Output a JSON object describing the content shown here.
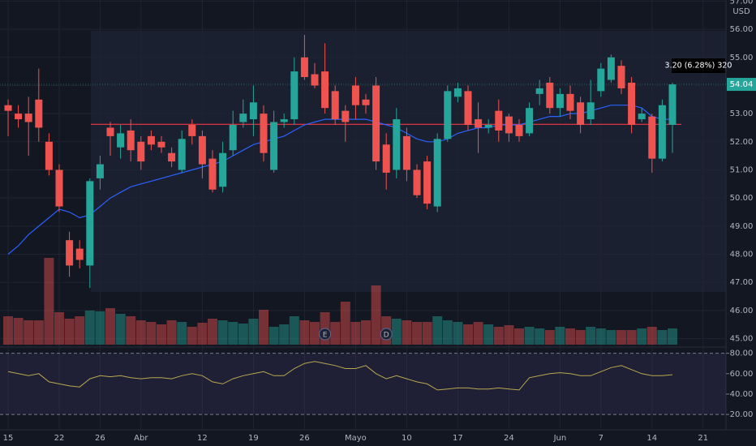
{
  "chart_data": [
    {
      "type": "candlestick",
      "currency": "USD",
      "categories": [
        "15",
        null,
        null,
        null,
        null,
        "22",
        null,
        null,
        null,
        "26",
        null,
        null,
        null,
        "Abr",
        null,
        null,
        null,
        null,
        null,
        "12",
        null,
        null,
        null,
        null,
        "19",
        null,
        null,
        null,
        null,
        "26",
        null,
        null,
        null,
        null,
        "Mayo",
        null,
        null,
        null,
        null,
        "10",
        null,
        null,
        null,
        null,
        "17",
        null,
        null,
        null,
        null,
        "24",
        null,
        null,
        null,
        null,
        "Jun",
        null,
        null,
        null,
        "7",
        null,
        null,
        null,
        null,
        "14",
        null,
        null,
        null,
        null,
        "21"
      ],
      "open": [
        53.3,
        53.0,
        53.0,
        53.5,
        52.0,
        51.0,
        48.5,
        48.2,
        47.6,
        50.7,
        52.5,
        51.8,
        52.4,
        52.0,
        52.2,
        52.0,
        51.6,
        51.0,
        52.6,
        52.2,
        51.4,
        50.4,
        51.7,
        52.7,
        52.8,
        53.0,
        51.0,
        52.7,
        52.8,
        55.0,
        54.4,
        54.5,
        53.8,
        53.1,
        54.0,
        53.5,
        54.0,
        51.9,
        51.0,
        52.2,
        51.0,
        51.3,
        49.7,
        52.1,
        53.6,
        53.8,
        52.8,
        52.5,
        53.1,
        52.9,
        52.6,
        52.3,
        53.7,
        54.1,
        53.2,
        53.7,
        53.4,
        52.8,
        53.8,
        54.2,
        54.7,
        54.1,
        52.8,
        52.9,
        51.4,
        52.6,
        null,
        null,
        null
      ],
      "high": [
        53.5,
        53.3,
        53.6,
        54.6,
        52.3,
        51.2,
        48.8,
        48.5,
        50.7,
        51.5,
        52.7,
        52.6,
        52.8,
        52.2,
        52.4,
        52.2,
        51.8,
        52.4,
        52.8,
        52.4,
        51.7,
        52.0,
        53.1,
        53.5,
        54.0,
        53.3,
        53.1,
        53.0,
        55.0,
        55.8,
        54.8,
        55.5,
        54.0,
        53.3,
        54.3,
        53.7,
        54.3,
        52.3,
        53.2,
        52.5,
        51.2,
        51.5,
        52.3,
        54.0,
        54.1,
        54.0,
        53.4,
        52.8,
        53.5,
        53.0,
        52.8,
        53.4,
        54.2,
        54.3,
        53.9,
        54.0,
        53.6,
        54.2,
        54.8,
        55.1,
        54.9,
        54.3,
        53.2,
        53.0,
        53.5,
        54.1,
        null,
        null,
        null
      ],
      "low": [
        52.2,
        52.5,
        51.5,
        52.0,
        50.8,
        49.5,
        47.2,
        47.5,
        46.8,
        50.3,
        51.5,
        51.4,
        51.3,
        51.0,
        51.7,
        51.6,
        51.1,
        50.9,
        51.9,
        50.7,
        50.2,
        50.2,
        51.5,
        52.5,
        52.2,
        51.3,
        50.9,
        52.5,
        52.6,
        54.2,
        53.9,
        53.0,
        52.6,
        52.0,
        52.8,
        53.0,
        51.0,
        50.3,
        50.7,
        50.6,
        50.0,
        49.6,
        49.5,
        52.0,
        53.4,
        52.4,
        51.6,
        52.3,
        52.0,
        52.0,
        52.0,
        52.2,
        53.3,
        53.0,
        52.9,
        52.8,
        52.3,
        52.6,
        53.6,
        54.1,
        53.7,
        52.3,
        52.7,
        50.9,
        51.3,
        51.6,
        null,
        null,
        null
      ],
      "close": [
        53.1,
        52.8,
        52.7,
        52.5,
        51.0,
        49.7,
        47.6,
        47.8,
        50.6,
        51.2,
        52.2,
        52.3,
        51.7,
        51.3,
        51.9,
        51.8,
        51.3,
        52.1,
        52.2,
        51.2,
        50.3,
        51.6,
        52.6,
        53.0,
        53.4,
        51.6,
        52.7,
        52.8,
        54.5,
        54.3,
        54.0,
        53.2,
        52.8,
        52.7,
        53.3,
        53.3,
        51.3,
        50.9,
        52.8,
        51.0,
        50.1,
        49.8,
        52.1,
        53.8,
        53.9,
        52.6,
        52.5,
        52.6,
        52.4,
        52.3,
        52.2,
        53.2,
        53.9,
        53.2,
        53.7,
        53.1,
        52.6,
        53.4,
        54.6,
        55.0,
        53.9,
        52.6,
        53.0,
        51.4,
        53.3,
        54.04,
        null,
        null,
        null
      ],
      "ma": {
        "color": "#2962ff",
        "values": [
          48.0,
          48.3,
          48.7,
          49.0,
          49.3,
          49.6,
          49.5,
          49.3,
          49.4,
          49.7,
          50.0,
          50.2,
          50.4,
          50.5,
          50.6,
          50.7,
          50.8,
          50.9,
          51.0,
          51.1,
          51.2,
          51.3,
          51.5,
          51.7,
          51.9,
          52.0,
          52.1,
          52.2,
          52.4,
          52.6,
          52.7,
          52.8,
          52.8,
          52.8,
          52.8,
          52.8,
          52.7,
          52.6,
          52.5,
          52.3,
          52.1,
          52.0,
          52.0,
          52.1,
          52.3,
          52.4,
          52.5,
          52.5,
          52.6,
          52.6,
          52.6,
          52.7,
          52.8,
          52.9,
          52.9,
          53.0,
          53.0,
          53.1,
          53.2,
          53.3,
          53.3,
          53.3,
          53.2,
          52.9,
          52.8,
          52.8,
          null,
          null,
          null
        ]
      },
      "volume": {
        "values": [
          35,
          33,
          30,
          30,
          107,
          40,
          32,
          35,
          42,
          41,
          45,
          38,
          35,
          30,
          28,
          25,
          30,
          28,
          22,
          27,
          32,
          30,
          28,
          26,
          32,
          43,
          22,
          25,
          35,
          30,
          28,
          40,
          28,
          53,
          28,
          30,
          73,
          35,
          32,
          30,
          28,
          28,
          35,
          30,
          28,
          25,
          28,
          25,
          22,
          24,
          20,
          22,
          20,
          18,
          22,
          20,
          18,
          22,
          20,
          18,
          18,
          18,
          20,
          22,
          18,
          20,
          null,
          null,
          null
        ]
      },
      "up_color": "#26a69a",
      "down_color": "#ef5350",
      "last_price": 54.04,
      "change_label": "3.20 (6.28%) 320",
      "poc": 52.62,
      "events": [
        {
          "label": "E",
          "x": 31
        },
        {
          "label": "D",
          "x": 37
        }
      ],
      "ylim": [
        44.7,
        57.04
      ],
      "yticks": [
        {
          "value": 45,
          "label": "45.00"
        },
        {
          "value": 46,
          "label": "46.00"
        },
        {
          "value": 47,
          "label": "47.00"
        },
        {
          "value": 48,
          "label": "48.00"
        },
        {
          "value": 49,
          "label": "49.00"
        },
        {
          "value": 50,
          "label": "50.00"
        },
        {
          "value": 51,
          "label": "51.00"
        },
        {
          "value": 52,
          "label": "52.00"
        },
        {
          "value": 53,
          "label": "53.00"
        },
        {
          "value": 54,
          "label": "54.00"
        },
        {
          "value": 55,
          "label": "55.00"
        },
        {
          "value": 56,
          "label": "56.00"
        },
        {
          "value": 57,
          "label": "57.00"
        }
      ],
      "grid": true
    },
    {
      "type": "line",
      "color": "#b9a84f",
      "band_color": "#7e57c2",
      "values": [
        62,
        60,
        58,
        60,
        52,
        50,
        48,
        47,
        55,
        58,
        57,
        58,
        56,
        55,
        56,
        56,
        55,
        58,
        60,
        58,
        52,
        50,
        55,
        58,
        60,
        62,
        58,
        58,
        65,
        70,
        72,
        70,
        68,
        65,
        65,
        68,
        60,
        55,
        58,
        55,
        52,
        50,
        44,
        45,
        46,
        46,
        45,
        45,
        46,
        45,
        44,
        56,
        58,
        60,
        61,
        60,
        58,
        58,
        62,
        66,
        68,
        64,
        60,
        58,
        58,
        59,
        null,
        null,
        null
      ],
      "ylim": [
        5,
        84.5
      ],
      "yticks": [
        {
          "value": 20,
          "label": "20.00"
        },
        {
          "value": 40,
          "label": "40.00"
        },
        {
          "value": 60,
          "label": "60.00"
        },
        {
          "value": 80,
          "label": "80.00"
        }
      ],
      "band": [
        20,
        80
      ]
    }
  ]
}
